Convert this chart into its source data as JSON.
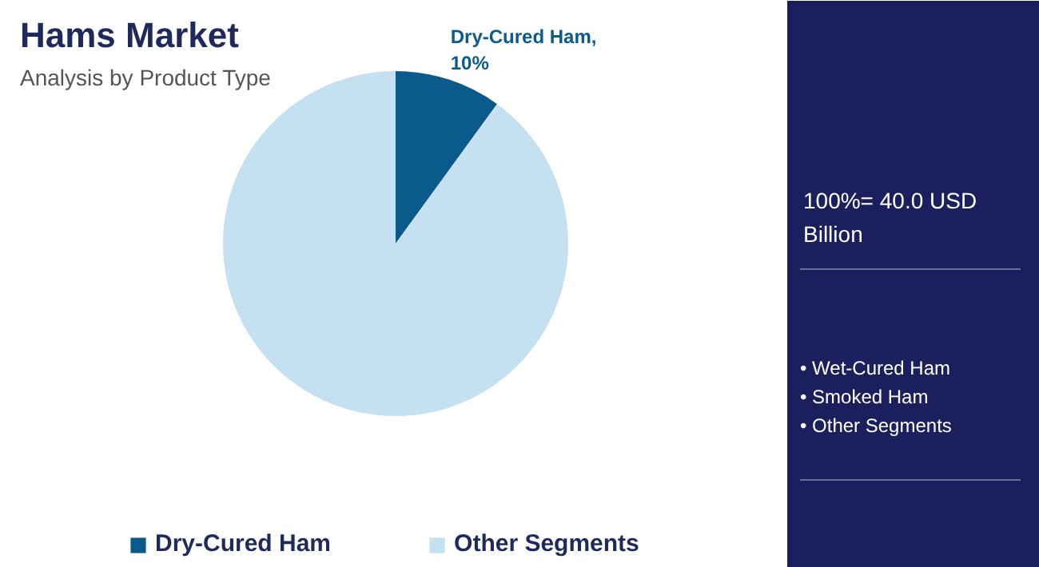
{
  "chart_data": {
    "type": "pie",
    "title": "Hams Market",
    "subtitle": "Analysis by Product Type",
    "categories": [
      "Dry-Cured Ham",
      "Other Segments"
    ],
    "values": [
      10,
      90
    ],
    "colors": [
      "#0b5a8c",
      "#c5e0f0"
    ],
    "value_labels": [
      "Dry-Cured Ham,\n10%",
      null
    ],
    "legend": "bottom",
    "annotations": [
      "100%= 40.0 USD Billion",
      "• Wet-Cured Ham",
      "• Smoked Ham",
      "• Other Segments"
    ]
  }
}
